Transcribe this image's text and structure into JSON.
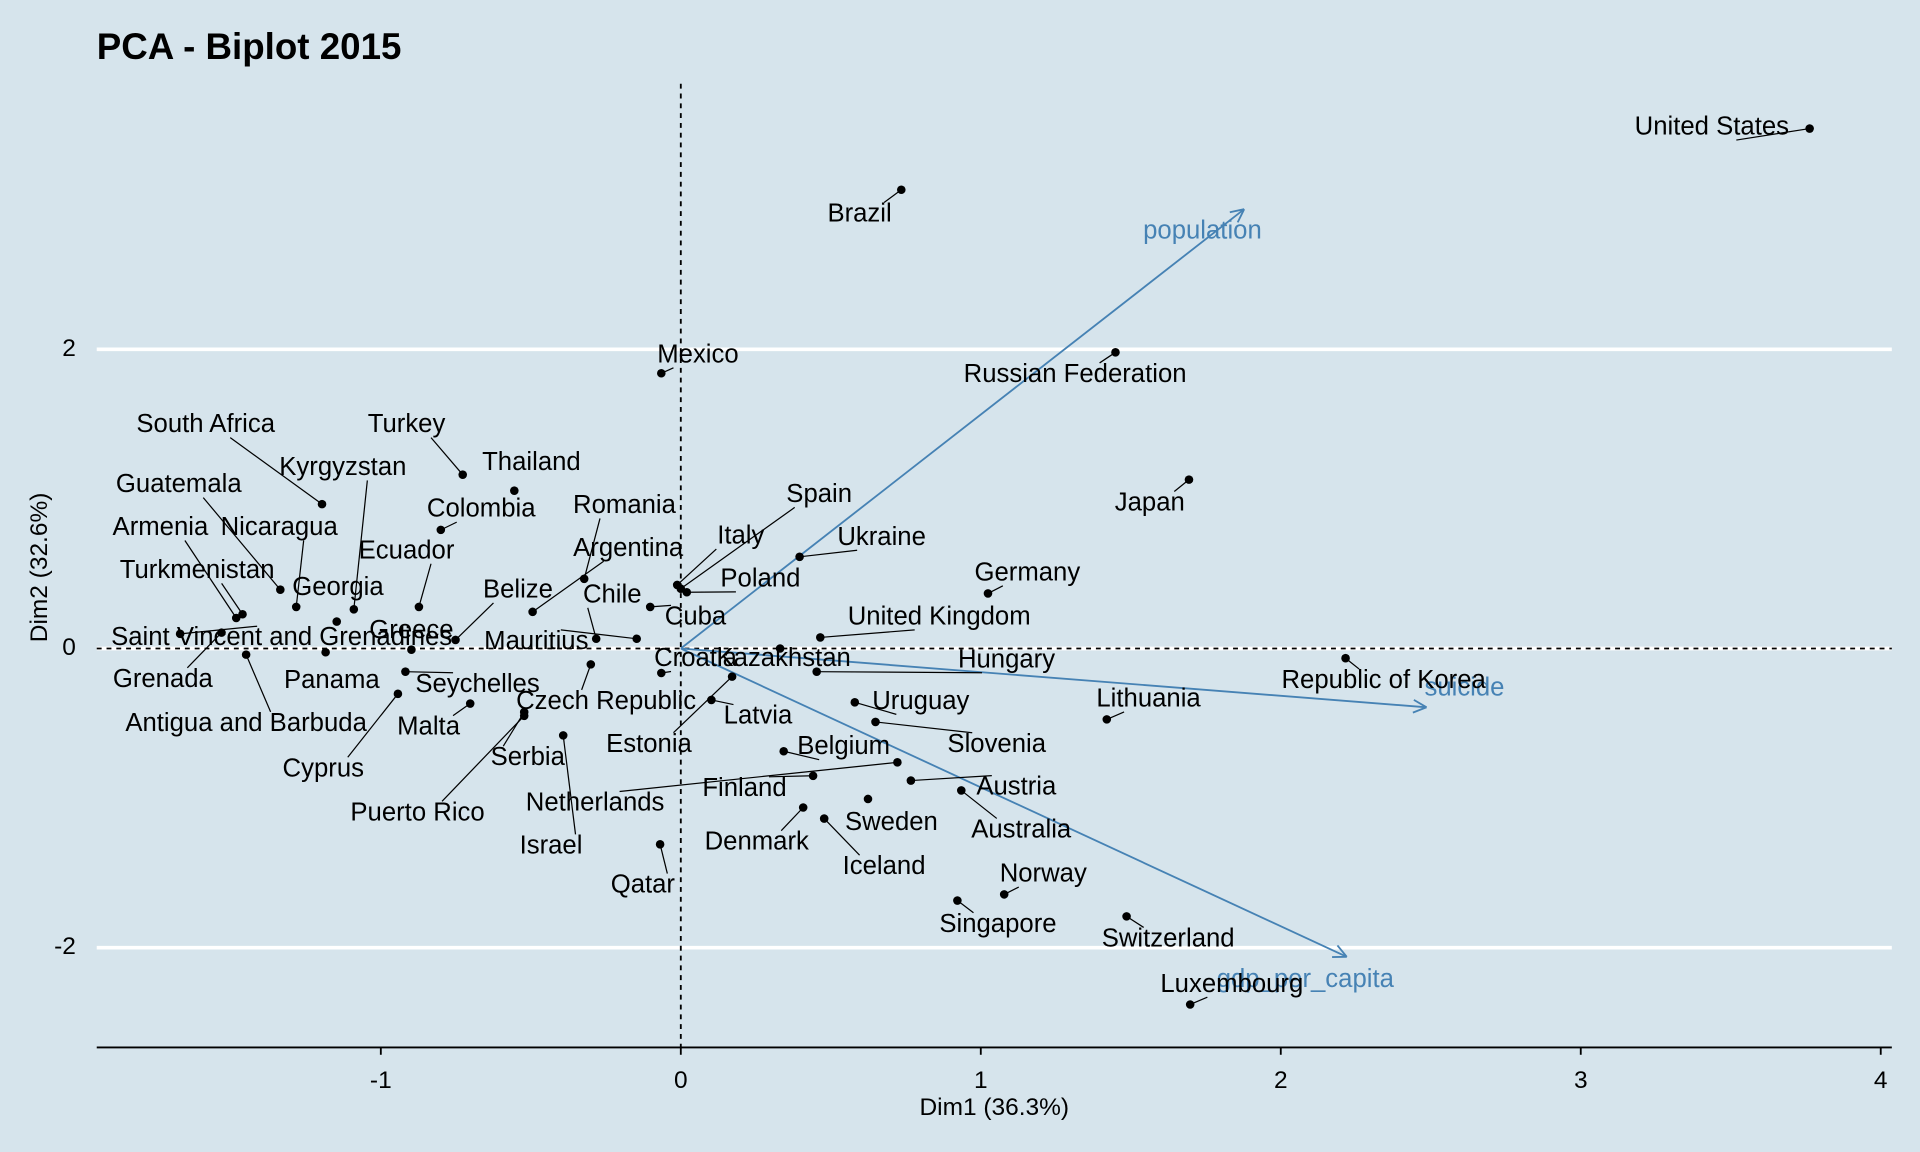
{
  "chart_data": {
    "type": "scatter",
    "title": "PCA - Biplot 2015",
    "xlabel": "Dim1 (36.3%)",
    "ylabel": "Dim2 (32.6%)",
    "xlim": [
      -1.947,
      4.037
    ],
    "ylim": [
      -2.667,
      3.8
    ],
    "xticks": [
      -1,
      0,
      1,
      2,
      3,
      4
    ],
    "yticks": [
      -2,
      0,
      2
    ],
    "grid": true,
    "point_color": "#000000",
    "points": {
      "labels": [
        "United States",
        "Brazil",
        "Russian Federation",
        "Mexico",
        "Japan",
        "Turkey",
        "Thailand",
        "South Africa",
        "Kyrgyzstan",
        "Colombia",
        "Guatemala",
        "Nicaragua",
        "Armenia",
        "Ecuador",
        "Romania",
        "Spain",
        "Italy",
        "Ukraine",
        "Argentina",
        "Turkmenistan",
        "Georgia",
        "Poland",
        "Germany",
        "Belize",
        "Chile",
        "Cuba",
        "United Kingdom",
        "Saint Vincent and Grenadines",
        "Greece",
        "Mauritius",
        "Croatia",
        "Kazakhstan",
        "Hungary",
        "Republic of Korea",
        "Grenada",
        "Panama",
        "Seychelles",
        "Antigua and Barbuda",
        "Malta",
        "Cyprus",
        "Czech Republic",
        "Latvia",
        "Uruguay",
        "Lithuania",
        "Estonia",
        "Slovenia",
        "Serbia",
        "Belgium",
        "Finland",
        "Netherlands",
        "Austria",
        "Puerto Rico",
        "Australia",
        "Sweden",
        "Denmark",
        "Iceland",
        "Israel",
        "Qatar",
        "Norway",
        "Singapore",
        "Switzerland",
        "Luxembourg"
      ],
      "x": [
        3.763,
        0.735,
        1.449,
        -0.065,
        1.694,
        -0.727,
        -0.555,
        -1.196,
        -1.09,
        -0.8,
        -1.335,
        -1.282,
        -1.482,
        -0.873,
        -0.322,
        0.0,
        -0.012,
        0.396,
        -0.494,
        -1.461,
        -1.147,
        0.02,
        1.024,
        -0.751,
        -0.282,
        -0.102,
        0.465,
        -1.669,
        -0.898,
        -0.147,
        -0.065,
        0.331,
        0.453,
        2.216,
        -1.531,
        -1.184,
        -0.918,
        -1.449,
        -0.702,
        -0.943,
        -0.3,
        0.102,
        0.58,
        1.42,
        0.171,
        0.649,
        -0.522,
        0.343,
        0.441,
        0.722,
        0.767,
        -0.522,
        0.935,
        0.624,
        0.408,
        0.478,
        -0.392,
        -0.069,
        1.078,
        0.922,
        1.486,
        1.698
      ],
      "y": [
        3.476,
        3.067,
        1.98,
        1.84,
        1.129,
        1.162,
        1.055,
        0.965,
        0.262,
        0.793,
        0.393,
        0.278,
        0.204,
        0.278,
        0.466,
        0.4,
        0.425,
        0.613,
        0.245,
        0.229,
        0.18,
        0.376,
        0.368,
        0.057,
        0.065,
        0.278,
        0.074,
        0.098,
        -0.008,
        0.065,
        -0.164,
        0.0,
        -0.155,
        -0.065,
        0.106,
        -0.025,
        -0.155,
        -0.041,
        -0.368,
        -0.303,
        -0.106,
        -0.344,
        -0.36,
        -0.474,
        -0.188,
        -0.491,
        -0.425,
        -0.687,
        -0.851,
        -0.761,
        -0.883,
        -0.45,
        -0.949,
        -1.006,
        -1.063,
        -1.137,
        -0.581,
        -1.309,
        -1.644,
        -1.685,
        -1.791,
        -2.38
      ]
    },
    "arrows": {
      "color": "#4682b4",
      "labels": [
        "population",
        "suicide",
        "gdp_per_capita"
      ],
      "x": [
        1.878,
        2.486,
        2.22
      ],
      "y": [
        2.937,
        -0.393,
        -2.061
      ]
    }
  }
}
